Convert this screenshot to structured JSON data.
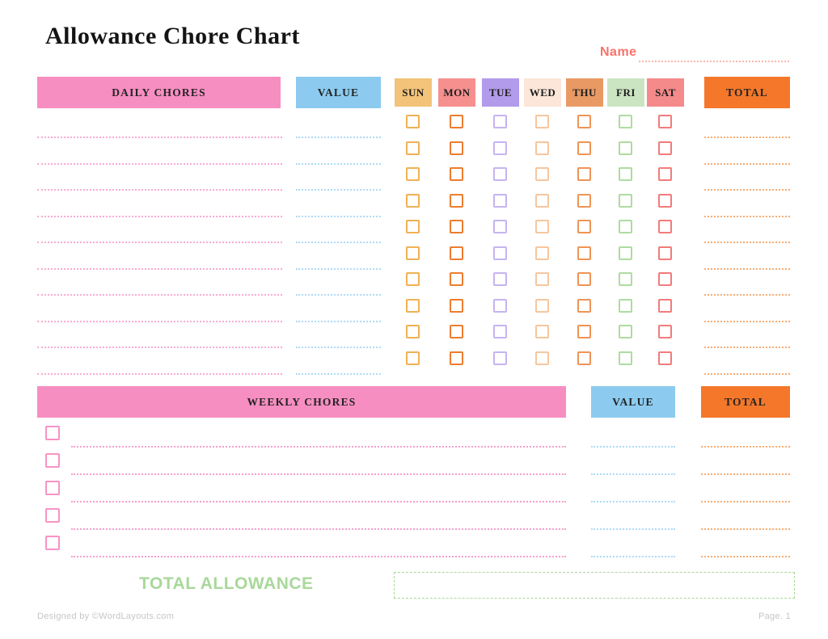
{
  "page": {
    "title": "Allowance Chore Chart",
    "name_label": "Name",
    "footer_left": "Designed by ©WordLayouts.com",
    "footer_right": "Page. 1"
  },
  "daily": {
    "chores_header": "DAILY CHORES",
    "value_header": "VALUE",
    "total_header": "TOTAL",
    "row_count": 10,
    "days": [
      {
        "label": "SUN",
        "bg": "#F2C379",
        "box": "#F0B155"
      },
      {
        "label": "MON",
        "bg": "#F5908F",
        "box": "#ED7D2F"
      },
      {
        "label": "TUE",
        "bg": "#B29BEA",
        "box": "#C6B4F1"
      },
      {
        "label": "WED",
        "bg": "#FBE6D9",
        "box": "#F6C69E"
      },
      {
        "label": "THU",
        "bg": "#E99A64",
        "box": "#EF9455"
      },
      {
        "label": "FRI",
        "bg": "#CBE5C2",
        "box": "#AEDCA0"
      },
      {
        "label": "SAT",
        "bg": "#F58A8A",
        "box": "#F37B7B"
      }
    ]
  },
  "weekly": {
    "chores_header": "WEEKLY CHORES",
    "value_header": "VALUE",
    "total_header": "TOTAL",
    "row_count": 5
  },
  "total_allowance_label": "TOTAL ALLOWANCE",
  "colors": {
    "header_pink": "#F78EC2",
    "header_blue": "#8CCBEF",
    "header_orange": "#F4772A",
    "line_pink": "#F9ABD2",
    "line_blue": "#AFDBF7",
    "line_orange": "#F7AC72",
    "weekly_line_pink": "#F5A0CC",
    "weekly_box_pink": "#F893C5",
    "accent_green": "#A8D89A",
    "name_coral": "#F9726B",
    "title_ink": "#141414"
  }
}
